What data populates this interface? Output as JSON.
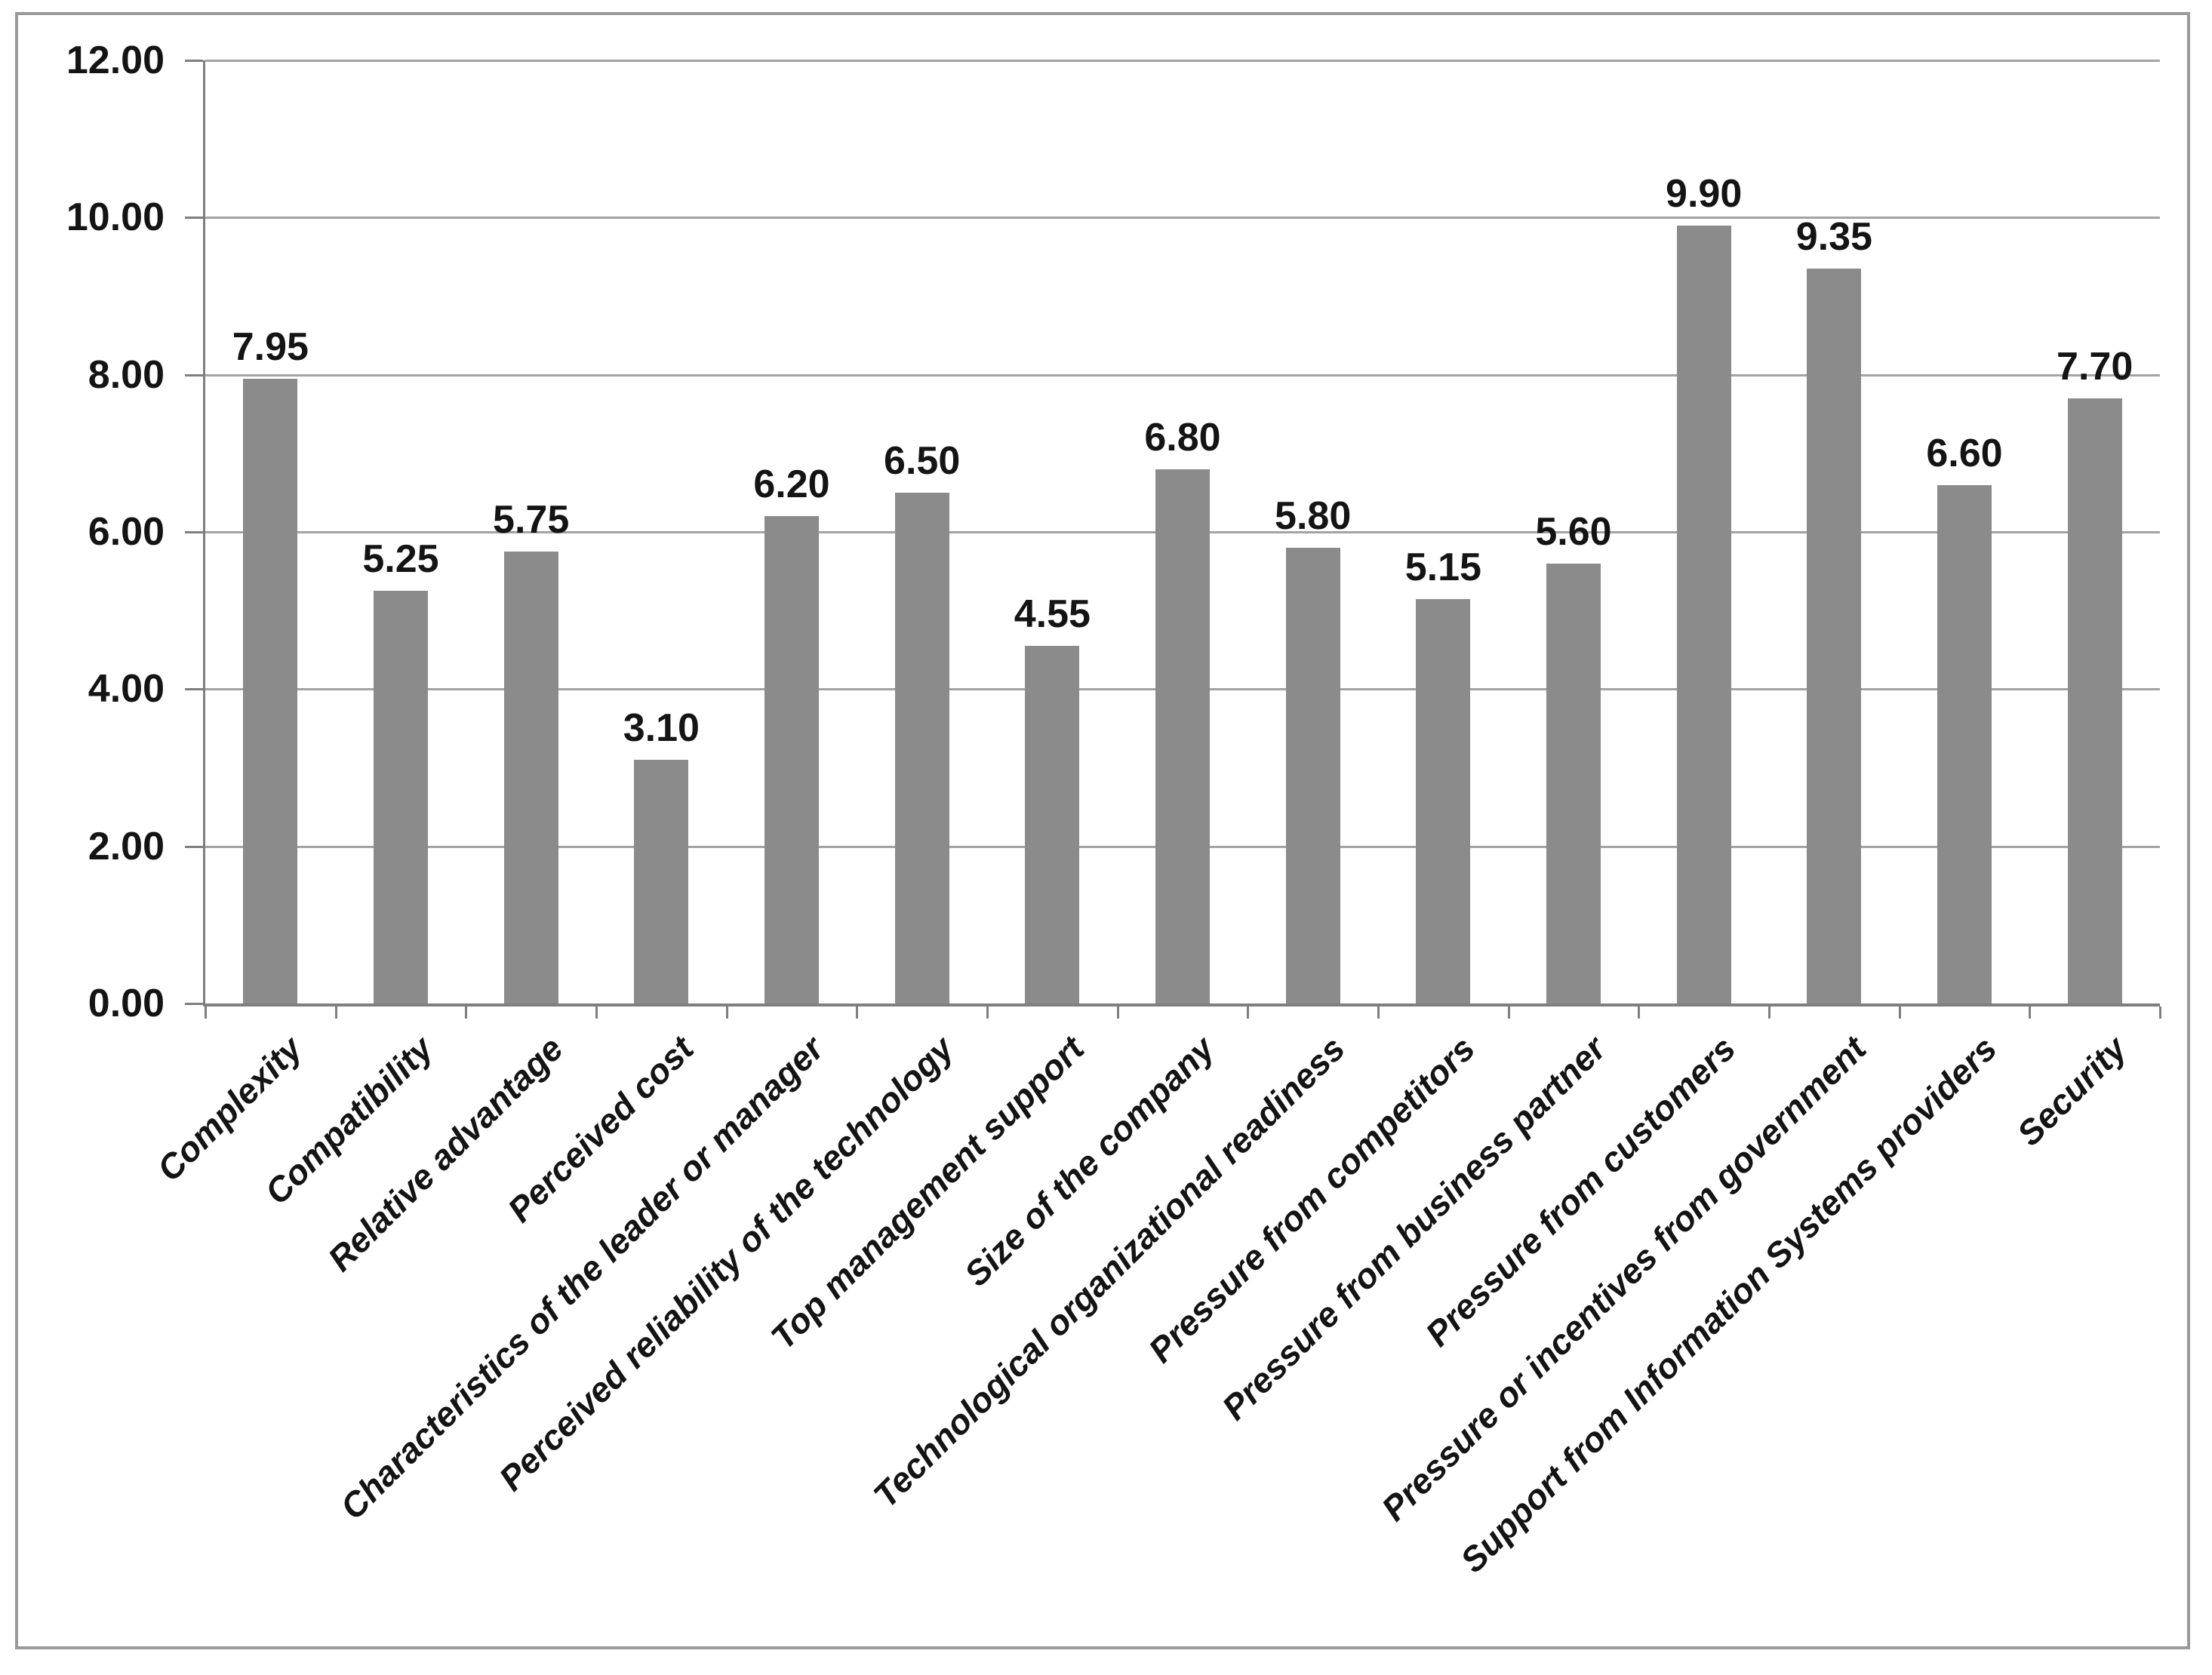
{
  "figure": {
    "frame_color": "#9a9a9a",
    "background_color": "#ffffff"
  },
  "chart_data": {
    "type": "bar",
    "title": "",
    "categories": [
      "Complexity",
      "Compatibility",
      "Relative advantage",
      "Perceived cost",
      "Characteristics of the leader or manager",
      "Perceived reliability of the technology",
      "Top management support",
      "Size of the company",
      "Technological organizational readiness",
      "Pressure from competitors",
      "Pressure from business partner",
      "Pressure from customers",
      "Pressure or incentives from government",
      "Support from Information Systems providers",
      "Security"
    ],
    "values": [
      7.95,
      5.25,
      5.75,
      3.1,
      6.2,
      6.5,
      4.55,
      6.8,
      5.8,
      5.15,
      5.6,
      9.9,
      9.35,
      6.6,
      7.7
    ],
    "data_labels": [
      "7.95",
      "5.25",
      "5.75",
      "3.10",
      "6.20",
      "6.50",
      "4.55",
      "6.80",
      "5.80",
      "5.15",
      "5.60",
      "9.90",
      "9.35",
      "6.60",
      "7.70"
    ],
    "xlabel": "",
    "ylabel": "",
    "ylim": [
      0,
      12
    ],
    "y_ticks": [
      {
        "label": "12.00",
        "value": 12
      },
      {
        "label": "10.00",
        "value": 10
      },
      {
        "label": "8.00",
        "value": 8
      },
      {
        "label": "6.00",
        "value": 6
      },
      {
        "label": "4.00",
        "value": 4
      },
      {
        "label": "2.00",
        "value": 2
      },
      {
        "label": "0.00",
        "value": 0
      }
    ],
    "grid": true,
    "legend_position": "none",
    "colors": {
      "bar": "#8b8b8b",
      "gridline": "#a3a3a3",
      "axis": "#7f7f7f",
      "text": "#141414"
    }
  }
}
